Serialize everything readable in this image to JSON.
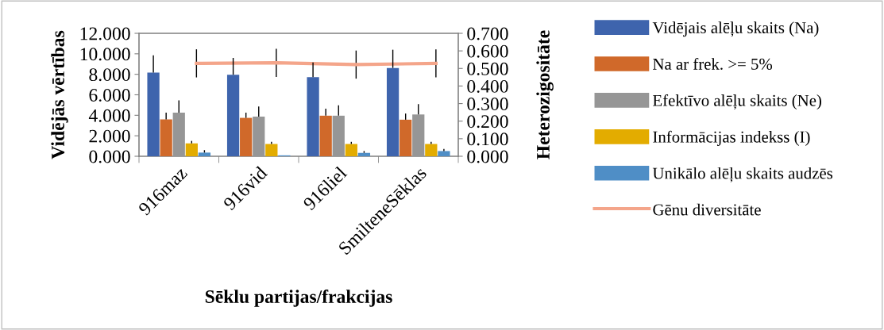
{
  "chart_data": {
    "type": "bar",
    "xlabel": "Sēklu partijas/frakcijas",
    "ylabel": "Vidējās vērtības",
    "y2label": "Heterozigositāte",
    "categories": [
      "916maz",
      "916vid",
      "916liel",
      "SmilteneSēklas"
    ],
    "series": [
      {
        "name": "Vidējais alēļu skaits (Na)",
        "color": "#3e64ad",
        "values": [
          8.17,
          7.96,
          7.72,
          8.62
        ],
        "errors": [
          [
            8.17,
            9.85
          ],
          [
            7.96,
            9.6
          ],
          [
            7.72,
            9.16
          ],
          [
            8.62,
            10.4
          ]
        ]
      },
      {
        "name": "Na ar frek. >= 5%",
        "color": "#d0692a",
        "values": [
          3.6,
          3.75,
          3.96,
          3.57
        ],
        "errors": [
          [
            3.6,
            4.26
          ],
          [
            3.75,
            4.26
          ],
          [
            3.96,
            4.65
          ],
          [
            3.57,
            4.17
          ]
        ]
      },
      {
        "name": "Efektīvo alēļu skaits (Ne)",
        "color": "#969696",
        "values": [
          4.26,
          3.87,
          3.96,
          4.08
        ],
        "errors": [
          [
            4.26,
            5.46
          ],
          [
            3.87,
            4.86
          ],
          [
            3.96,
            4.98
          ],
          [
            4.08,
            5.1
          ]
        ]
      },
      {
        "name": "Informācijas indekss (I)",
        "color": "#e3ac00",
        "values": [
          1.26,
          1.2,
          1.2,
          1.2
        ],
        "errors": [
          [
            1.26,
            1.5
          ],
          [
            1.2,
            1.41
          ],
          [
            1.2,
            1.41
          ],
          [
            1.2,
            1.41
          ]
        ]
      },
      {
        "name": "Unikālo alēļu skaits audzēs",
        "color": "#4f8ec6",
        "values": [
          0.36,
          0.09,
          0.33,
          0.51
        ],
        "errors": [
          [
            0.36,
            0.6
          ],
          null,
          [
            0.33,
            0.51
          ],
          [
            0.51,
            0.72
          ]
        ]
      },
      {
        "name": "Gēnu diversitāte",
        "type": "line",
        "axis": "y2",
        "color": "#f4a58a",
        "values": [
          0.529,
          0.532,
          0.522,
          0.529
        ],
        "errors": [
          0.08,
          0.08,
          0.08,
          0.08
        ]
      }
    ],
    "ylim": [
      0,
      12
    ],
    "yticks": [
      {
        "value": 0,
        "label": "0.000"
      },
      {
        "value": 2,
        "label": "2.000"
      },
      {
        "value": 4,
        "label": "4.000"
      },
      {
        "value": 6,
        "label": "6.000"
      },
      {
        "value": 8,
        "label": "8.000"
      },
      {
        "value": 10,
        "label": "10.000"
      },
      {
        "value": 12,
        "label": "12.000"
      }
    ],
    "y2lim": [
      0,
      0.7
    ],
    "y2ticks": [
      {
        "value": 0,
        "label": "0.000"
      },
      {
        "value": 0.1,
        "label": "0.100"
      },
      {
        "value": 0.2,
        "label": "0.200"
      },
      {
        "value": 0.3,
        "label": "0.300"
      },
      {
        "value": 0.4,
        "label": "0.400"
      },
      {
        "value": 0.5,
        "label": "0.500"
      },
      {
        "value": 0.6,
        "label": "0.600"
      },
      {
        "value": 0.7,
        "label": "0.700"
      }
    ],
    "grid": false,
    "legend": "right"
  }
}
